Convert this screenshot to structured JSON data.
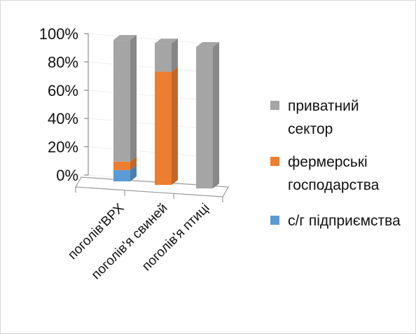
{
  "chart_data": {
    "type": "bar",
    "stacked": true,
    "percent_stacked": true,
    "three_d": true,
    "categories": [
      "поголів'ВРХ",
      "поголів'я свиней",
      "поголів'я птиці"
    ],
    "series": [
      {
        "name": "с/г підприємства",
        "color": "#5b9bd5",
        "values": [
          8,
          0,
          0
        ]
      },
      {
        "name": "фермерські господарства",
        "color": "#ed7d31",
        "values": [
          6,
          80,
          0
        ]
      },
      {
        "name": "приватний сектор",
        "color": "#a5a5a5",
        "values": [
          86,
          20,
          100
        ]
      }
    ],
    "y_ticks": [
      "0%",
      "20%",
      "40%",
      "60%",
      "80%",
      "100%"
    ],
    "ylim": [
      0,
      100
    ],
    "legend_position": "right",
    "legend_order": [
      "приватний сектор",
      "фермерські господарства",
      "с/г підприємства"
    ]
  }
}
